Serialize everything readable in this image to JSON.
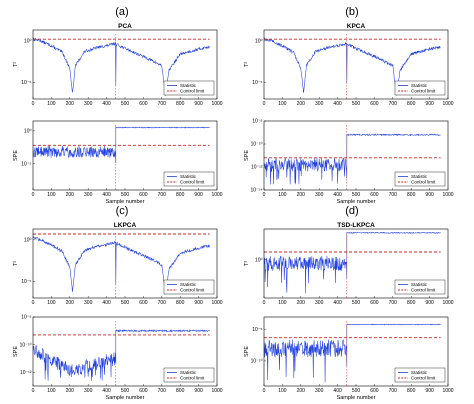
{
  "figure": {
    "panels": [
      {
        "letter": "(a)",
        "title": "PCA"
      },
      {
        "letter": "(b)",
        "title": "KPCA"
      },
      {
        "letter": "(c)",
        "title": "LKPCA"
      },
      {
        "letter": "(d)",
        "title": "TSD-LKPCA"
      }
    ]
  },
  "colors": {
    "statistic": "#1f3fe0",
    "limit": "#d42020",
    "axes": "#000000"
  },
  "chart_data": [
    {
      "type": "line",
      "panel": "(a)",
      "title": "PCA",
      "xlabel": "",
      "ylabel": "T²",
      "scale": "log",
      "xlim": [
        0,
        1000
      ],
      "ylim_log10": [
        -7,
        1.3
      ],
      "xticks": [
        0,
        100,
        200,
        300,
        400,
        500,
        600,
        700,
        800,
        900,
        1000
      ],
      "yticks": [
        {
          "exp": 0,
          "label": "10⁰"
        },
        {
          "exp": -5,
          "label": "10⁻⁵"
        }
      ],
      "control_limit_log10": 0.2,
      "fault_at": 450,
      "series": [
        {
          "name": "Statistic"
        },
        {
          "name": "Control limit"
        }
      ],
      "segments": [
        [
          0,
          0.25
        ],
        [
          40,
          0
        ],
        [
          100,
          -0.6
        ],
        [
          160,
          -1.4
        ],
        [
          200,
          -3.3
        ],
        [
          215,
          -6.3
        ],
        [
          230,
          -3.0
        ],
        [
          280,
          -1.3
        ],
        [
          350,
          -0.8
        ],
        [
          400,
          -0.6
        ],
        [
          449,
          -0.3
        ],
        [
          450,
          -5.2
        ],
        [
          452,
          -0.4
        ],
        [
          500,
          -0.9
        ],
        [
          560,
          -1.5
        ],
        [
          640,
          -2.3
        ],
        [
          700,
          -3.0
        ],
        [
          720,
          -6.5
        ],
        [
          740,
          -3.5
        ],
        [
          800,
          -1.6
        ],
        [
          900,
          -1.0
        ],
        [
          960,
          -0.7
        ]
      ],
      "legend": "right",
      "grid": false
    },
    {
      "type": "line",
      "panel": "(a)",
      "title": "",
      "xlabel": "Sample number",
      "ylabel": "SPE",
      "scale": "log",
      "xlim": [
        0,
        1000
      ],
      "ylim_log10": [
        -9,
        1.5
      ],
      "xticks": [
        0,
        100,
        200,
        300,
        400,
        500,
        600,
        700,
        800,
        900,
        1000
      ],
      "yticks": [
        {
          "exp": 0,
          "label": "10⁰"
        },
        {
          "exp": -5,
          "label": "10⁻⁵"
        }
      ],
      "control_limit_log10": -2.2,
      "fault_at": 450,
      "before": {
        "base": -3.3,
        "noise": 0.8,
        "spikes": -2.2
      },
      "after": {
        "level": 0.5
      },
      "series": [
        {
          "name": "Statistic"
        },
        {
          "name": "Control limit"
        }
      ],
      "legend": "right",
      "grid": false
    },
    {
      "type": "line",
      "panel": "(b)",
      "title": "KPCA",
      "xlabel": "",
      "ylabel": "T²",
      "scale": "log",
      "xlim": [
        0,
        1000
      ],
      "ylim_log10": [
        -7,
        1.3
      ],
      "xticks": [
        0,
        100,
        200,
        300,
        400,
        500,
        600,
        700,
        800,
        900,
        1000
      ],
      "yticks": [
        {
          "exp": 0,
          "label": "10⁰"
        },
        {
          "exp": -5,
          "label": "10⁻⁵"
        }
      ],
      "control_limit_log10": 0.2,
      "fault_at": 450,
      "series": [
        {
          "name": "Statistic"
        },
        {
          "name": "Control limit"
        }
      ],
      "segments": [
        [
          0,
          0.25
        ],
        [
          40,
          0
        ],
        [
          100,
          -0.6
        ],
        [
          160,
          -1.4
        ],
        [
          200,
          -3.3
        ],
        [
          215,
          -6.3
        ],
        [
          230,
          -3.0
        ],
        [
          280,
          -1.3
        ],
        [
          350,
          -0.8
        ],
        [
          400,
          -0.6
        ],
        [
          449,
          -0.3
        ],
        [
          450,
          -5.2
        ],
        [
          452,
          -0.4
        ],
        [
          500,
          -0.9
        ],
        [
          560,
          -1.5
        ],
        [
          640,
          -2.3
        ],
        [
          700,
          -3.0
        ],
        [
          720,
          -6.5
        ],
        [
          740,
          -3.5
        ],
        [
          800,
          -1.6
        ],
        [
          900,
          -1.0
        ],
        [
          960,
          -0.7
        ]
      ],
      "legend": "right",
      "grid": false
    },
    {
      "type": "line",
      "panel": "(b)",
      "title": "",
      "xlabel": "Sample number",
      "ylabel": "SPE",
      "scale": "log",
      "xlim": [
        0,
        1000
      ],
      "ylim_log10": [
        -14,
        -8
      ],
      "xticks": [
        0,
        100,
        200,
        300,
        400,
        500,
        600,
        700,
        800,
        900,
        1000
      ],
      "yticks": [
        {
          "exp": -8,
          "label": "10⁻⁸"
        },
        {
          "exp": -10,
          "label": "10⁻¹⁰"
        },
        {
          "exp": -12,
          "label": "10⁻¹²"
        },
        {
          "exp": -14,
          "label": "10⁻¹⁴"
        }
      ],
      "control_limit_log10": -11.2,
      "fault_at": 450,
      "before": {
        "base": -11.8,
        "noise": 0.6,
        "spikes": -13.6
      },
      "after": {
        "level": -9.2
      },
      "series": [
        {
          "name": "Statistic"
        },
        {
          "name": "Control limit"
        }
      ],
      "legend": "right",
      "grid": false
    },
    {
      "type": "line",
      "panel": "(c)",
      "title": "LKPCA",
      "xlabel": "",
      "ylabel": "T²",
      "scale": "log",
      "xlim": [
        0,
        1000
      ],
      "ylim_log10": [
        -7,
        1.3
      ],
      "xticks": [
        0,
        100,
        200,
        300,
        400,
        500,
        600,
        700,
        800,
        900,
        1000
      ],
      "yticks": [
        {
          "exp": 0,
          "label": "10⁰"
        },
        {
          "exp": -5,
          "label": "10⁻⁵"
        }
      ],
      "control_limit_log10": 0.7,
      "fault_at": 450,
      "series": [
        {
          "name": "Statistic"
        },
        {
          "name": "Control limit"
        }
      ],
      "segments": [
        [
          0,
          0.25
        ],
        [
          40,
          0
        ],
        [
          100,
          -0.6
        ],
        [
          160,
          -1.4
        ],
        [
          200,
          -3.3
        ],
        [
          215,
          -6.3
        ],
        [
          230,
          -3.0
        ],
        [
          280,
          -1.3
        ],
        [
          350,
          -0.8
        ],
        [
          400,
          -0.6
        ],
        [
          449,
          -0.3
        ],
        [
          450,
          -5.2
        ],
        [
          452,
          -0.4
        ],
        [
          500,
          -0.9
        ],
        [
          560,
          -1.5
        ],
        [
          640,
          -2.3
        ],
        [
          700,
          -3.0
        ],
        [
          720,
          -6.5
        ],
        [
          740,
          -3.5
        ],
        [
          800,
          -1.6
        ],
        [
          900,
          -1.0
        ],
        [
          960,
          -0.7
        ]
      ],
      "legend": "right",
      "grid": false
    },
    {
      "type": "line",
      "panel": "(c)",
      "title": "",
      "xlabel": "Sample number",
      "ylabel": "SPE",
      "scale": "log",
      "xlim": [
        0,
        1000
      ],
      "ylim_log10": [
        -13,
        -8
      ],
      "xticks": [
        0,
        100,
        200,
        300,
        400,
        500,
        600,
        700,
        800,
        900,
        1000
      ],
      "yticks": [
        {
          "exp": -8,
          "label": "10⁻⁸"
        },
        {
          "exp": -10,
          "label": "10⁻¹⁰"
        },
        {
          "exp": -12,
          "label": "10⁻¹²"
        }
      ],
      "control_limit_log10": -9.3,
      "fault_at": 450,
      "before": {
        "base": -10.3,
        "noise": 0.5,
        "spikes": -12.8,
        "decay": true
      },
      "after": {
        "level": -9.0
      },
      "series": [
        {
          "name": "Statistic"
        },
        {
          "name": "Control limit"
        }
      ],
      "legend": "right",
      "grid": false
    },
    {
      "type": "line",
      "panel": "(d)",
      "title": "TSD-LKPCA",
      "xlabel": "",
      "ylabel": "T²",
      "scale": "log",
      "xlim": [
        0,
        1000
      ],
      "ylim_log10": [
        -5,
        4
      ],
      "xticks": [
        0,
        100,
        200,
        300,
        400,
        500,
        600,
        700,
        800,
        900,
        1000
      ],
      "yticks": [
        {
          "exp": 0,
          "label": "10⁰"
        }
      ],
      "control_limit_log10": 1.0,
      "fault_at": 450,
      "before": {
        "base": -0.5,
        "noise": 1.0,
        "spikes": -4.5
      },
      "after": {
        "level": 3.5
      },
      "series": [
        {
          "name": "Statistic"
        },
        {
          "name": "Control limit"
        }
      ],
      "legend": "right",
      "grid": false
    },
    {
      "type": "line",
      "panel": "(d)",
      "title": "",
      "xlabel": "Sample number",
      "ylabel": "SPE",
      "scale": "log",
      "xlim": [
        0,
        1000
      ],
      "ylim_log10": [
        -14,
        -3
      ],
      "xticks": [
        0,
        100,
        200,
        300,
        400,
        500,
        600,
        700,
        800,
        900,
        1000
      ],
      "yticks": [
        {
          "exp": -5,
          "label": "10⁻⁵"
        },
        {
          "exp": -10,
          "label": "10⁻¹⁰"
        }
      ],
      "control_limit_log10": -6.3,
      "fault_at": 450,
      "before": {
        "base": -8.0,
        "noise": 1.4,
        "spikes": -13.5
      },
      "after": {
        "level": -4.2
      },
      "series": [
        {
          "name": "Statistic"
        },
        {
          "name": "Control limit"
        }
      ],
      "legend": "right",
      "grid": false
    }
  ]
}
